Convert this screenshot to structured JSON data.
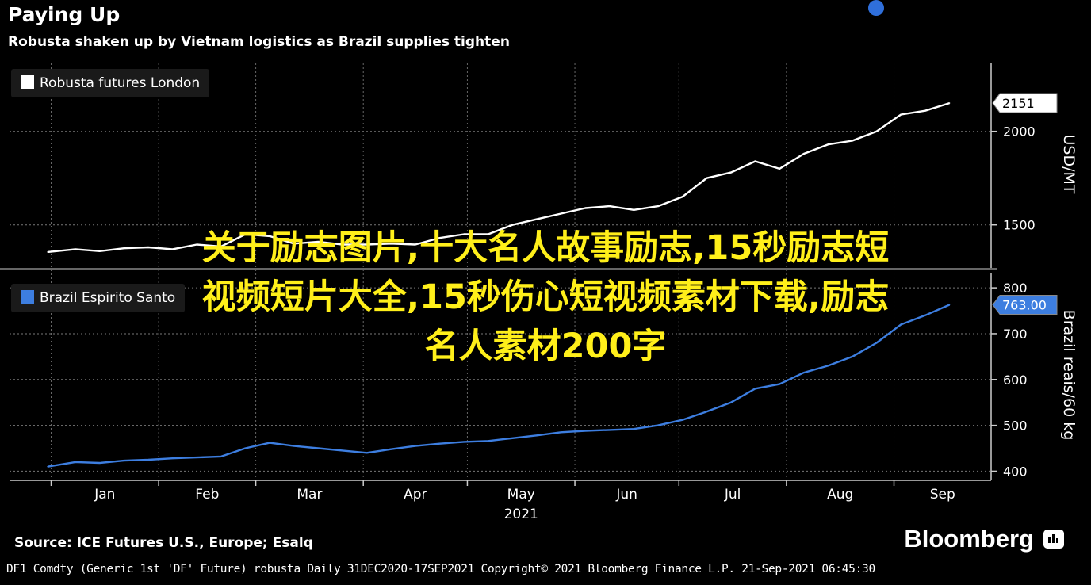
{
  "header": {
    "title": "Paying Up",
    "subtitle": "Robusta shaken up by Vietnam logistics as Brazil supplies tighten"
  },
  "footer": {
    "source": "Source: ICE Futures U.S., Europe; Esalq",
    "brand": "Bloomberg",
    "meta": "DF1 Comdty (Generic 1st 'DF' Future) robusta  Daily 31DEC2020-17SEP2021  Copyright© 2021 Bloomberg Finance L.P.  21-Sep-2021 06:45:30"
  },
  "overlay": {
    "line1": "关于励志图片,十大名人故事励志,15秒励志短",
    "line2": "视频短片大全,15秒伤心短视频素材下载,励志",
    "line3": "名人素材200字"
  },
  "colors": {
    "top_series": "#ffffff",
    "bottom_series": "#3d7ee0",
    "overlay_text": "#ffef1a",
    "marker": "#2f6fdb"
  },
  "chart_data": [
    {
      "type": "line",
      "legend_placement": "top-left",
      "ylabel": "USD/MT",
      "ylim": [
        1270,
        2380
      ],
      "yticks": [
        1500,
        2000
      ],
      "grid": true,
      "x_labels": [
        "Jan",
        "Feb",
        "Mar",
        "Apr",
        "May",
        "Jun",
        "Jul",
        "Aug",
        "Sep"
      ],
      "x_year": "2021",
      "last_value_label": "2151",
      "series": [
        {
          "name": "Robusta futures London",
          "x": [
            "2020-12-31",
            "2021-01-08",
            "2021-01-15",
            "2021-01-22",
            "2021-01-29",
            "2021-02-05",
            "2021-02-12",
            "2021-02-19",
            "2021-02-26",
            "2021-03-05",
            "2021-03-12",
            "2021-03-19",
            "2021-03-26",
            "2021-04-02",
            "2021-04-09",
            "2021-04-16",
            "2021-04-23",
            "2021-04-30",
            "2021-05-07",
            "2021-05-14",
            "2021-05-21",
            "2021-05-28",
            "2021-06-04",
            "2021-06-11",
            "2021-06-18",
            "2021-06-25",
            "2021-07-02",
            "2021-07-09",
            "2021-07-16",
            "2021-07-23",
            "2021-07-30",
            "2021-08-06",
            "2021-08-13",
            "2021-08-20",
            "2021-08-27",
            "2021-09-03",
            "2021-09-10",
            "2021-09-17"
          ],
          "values": [
            1355,
            1370,
            1360,
            1375,
            1380,
            1370,
            1395,
            1385,
            1450,
            1440,
            1400,
            1410,
            1395,
            1395,
            1400,
            1395,
            1430,
            1450,
            1450,
            1500,
            1530,
            1560,
            1590,
            1600,
            1580,
            1600,
            1650,
            1750,
            1780,
            1840,
            1800,
            1880,
            1930,
            1950,
            2000,
            2090,
            2110,
            2151
          ]
        }
      ]
    },
    {
      "type": "line",
      "legend_placement": "top-left",
      "ylabel": "Brazil reais/60 kg",
      "ylim": [
        380,
        840
      ],
      "yticks": [
        400,
        500,
        600,
        700,
        800
      ],
      "grid": true,
      "last_value_label": "763.00",
      "series": [
        {
          "name": "Brazil Espirito Santo",
          "x": [
            "2020-12-31",
            "2021-01-08",
            "2021-01-15",
            "2021-01-22",
            "2021-01-29",
            "2021-02-05",
            "2021-02-12",
            "2021-02-19",
            "2021-02-26",
            "2021-03-05",
            "2021-03-12",
            "2021-03-19",
            "2021-03-26",
            "2021-04-02",
            "2021-04-09",
            "2021-04-16",
            "2021-04-23",
            "2021-04-30",
            "2021-05-07",
            "2021-05-14",
            "2021-05-21",
            "2021-05-28",
            "2021-06-04",
            "2021-06-11",
            "2021-06-18",
            "2021-06-25",
            "2021-07-02",
            "2021-07-09",
            "2021-07-16",
            "2021-07-23",
            "2021-07-30",
            "2021-08-06",
            "2021-08-13",
            "2021-08-20",
            "2021-08-27",
            "2021-09-03",
            "2021-09-10",
            "2021-09-17"
          ],
          "values": [
            410,
            420,
            418,
            423,
            425,
            428,
            430,
            432,
            450,
            462,
            455,
            450,
            445,
            440,
            448,
            455,
            460,
            464,
            466,
            472,
            478,
            485,
            488,
            490,
            492,
            500,
            512,
            530,
            550,
            580,
            590,
            615,
            630,
            650,
            680,
            720,
            740,
            763
          ]
        }
      ]
    }
  ]
}
